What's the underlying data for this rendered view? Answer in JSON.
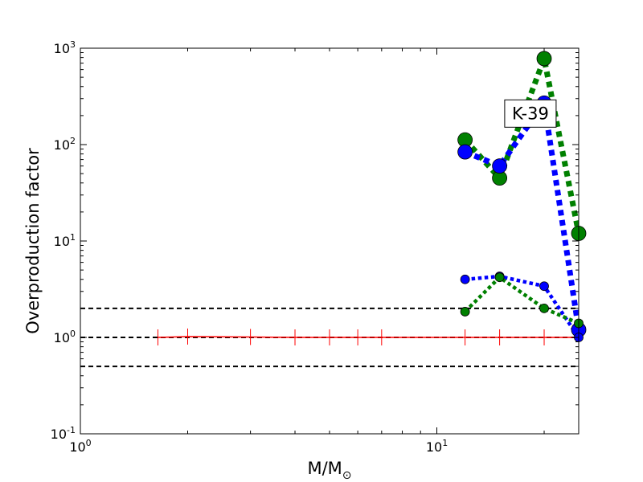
{
  "chart_data": {
    "type": "line",
    "title": "",
    "xlabel": "M/M",
    "xlabel_symbol": "⊙",
    "ylabel": "Overproduction factor",
    "xscale": "log",
    "yscale": "log",
    "xlim": [
      1,
      25
    ],
    "ylim": [
      0.1,
      1000
    ],
    "grid": false,
    "x_ticks": [
      {
        "value": 1,
        "base": "10",
        "exp": "0"
      },
      {
        "value": 10,
        "base": "10",
        "exp": "1"
      }
    ],
    "y_ticks": [
      {
        "value": 0.1,
        "base": "10",
        "exp": "-1"
      },
      {
        "value": 1,
        "base": "10",
        "exp": "0"
      },
      {
        "value": 10,
        "base": "10",
        "exp": "1"
      },
      {
        "value": 100,
        "base": "10",
        "exp": "2"
      },
      {
        "value": 1000,
        "base": "10",
        "exp": "3"
      }
    ],
    "reference_lines": [
      {
        "y": 2,
        "color": "#000000",
        "style": "dashed"
      },
      {
        "y": 1,
        "color": "#000000",
        "style": "dashed"
      },
      {
        "y": 0.5,
        "color": "#000000",
        "style": "dashed"
      }
    ],
    "series": [
      {
        "color": "#ff0000",
        "style": "solid",
        "width": 1.5,
        "marker": "vline",
        "x": [
          1.65,
          2,
          3,
          4,
          5,
          6,
          7,
          12,
          15,
          20,
          25
        ],
        "y": [
          1,
          1.02,
          1.01,
          1.0,
          1.0,
          1.0,
          1.0,
          1.0,
          1.0,
          1.0,
          1.0
        ]
      },
      {
        "color": "#008000",
        "style": "dotted",
        "width": 7,
        "marker": "circle-large",
        "x": [
          12,
          15,
          20,
          25
        ],
        "y": [
          112,
          45,
          780,
          12
        ]
      },
      {
        "color": "#0000ff",
        "style": "dotted",
        "width": 7,
        "marker": "circle-large",
        "x": [
          12,
          15,
          20,
          25
        ],
        "y": [
          84,
          60,
          270,
          1.2
        ]
      },
      {
        "color": "#0000ff",
        "style": "dotted",
        "width": 4.5,
        "marker": "circle-small",
        "x": [
          12,
          15,
          20,
          25
        ],
        "y": [
          4,
          4.3,
          3.4,
          1
        ]
      },
      {
        "color": "#008000",
        "style": "dotted",
        "width": 4.5,
        "marker": "circle-small",
        "x": [
          12,
          15,
          20,
          25
        ],
        "y": [
          1.85,
          4.2,
          2,
          1.4
        ]
      }
    ],
    "annotations": [
      {
        "text": "K-39",
        "x": 18.3,
        "y": 210,
        "boxed": true
      }
    ]
  }
}
